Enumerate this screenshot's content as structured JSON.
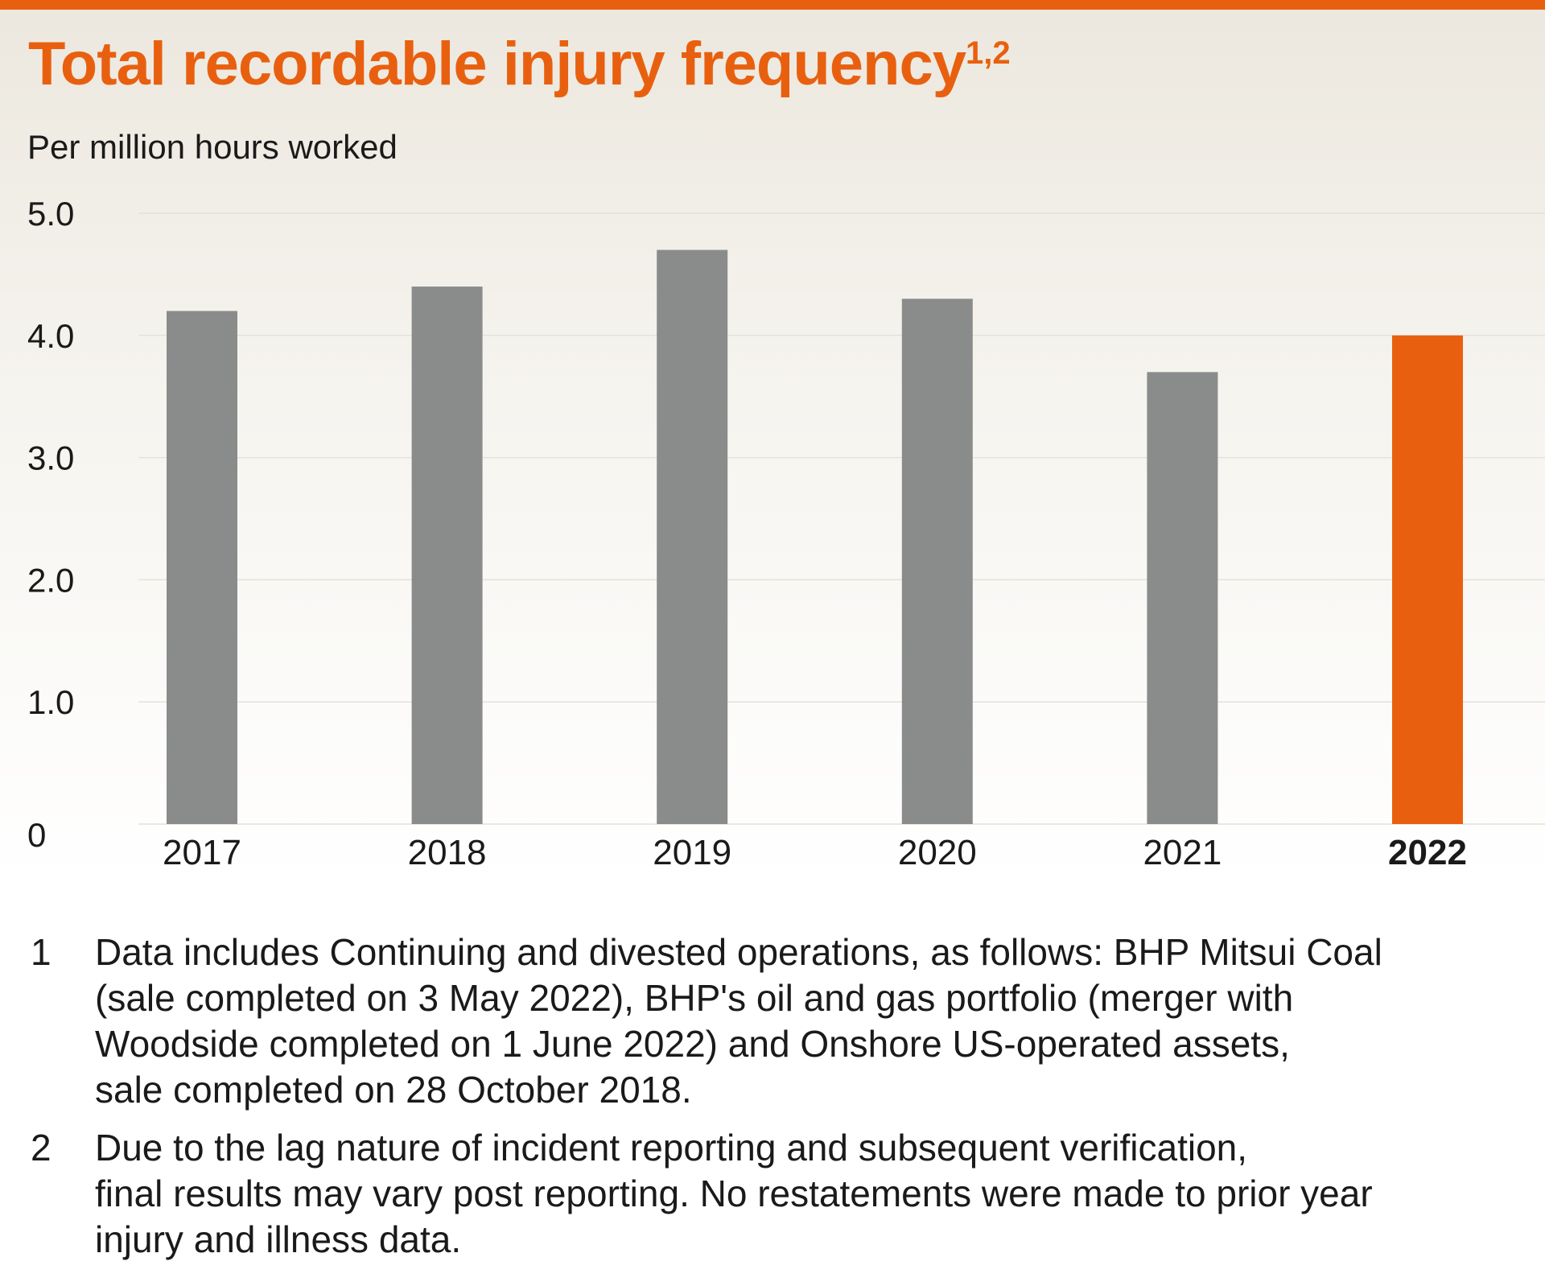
{
  "header": {
    "title": "Total recordable injury frequency",
    "title_superscript": "1,2",
    "subtitle": "Per million hours worked"
  },
  "chart_data": {
    "type": "bar",
    "title": "Total recordable injury frequency",
    "ylabel": "Per million hours worked",
    "xlabel": "",
    "categories": [
      "2017",
      "2018",
      "2019",
      "2020",
      "2021",
      "2022"
    ],
    "values": [
      4.2,
      4.4,
      4.7,
      4.3,
      3.7,
      4.0
    ],
    "highlight": "2022",
    "ylim": [
      0,
      5.0
    ],
    "yticks": [
      0,
      1.0,
      2.0,
      3.0,
      4.0,
      5.0
    ],
    "ytick_labels": [
      "0",
      "1.0",
      "2.0",
      "3.0",
      "4.0",
      "5.0"
    ],
    "grid": true,
    "colors": {
      "bar": "#8A8C8C",
      "highlight": "#E8600F",
      "grid": "#e4e1da"
    }
  },
  "footnotes": [
    {
      "number": "1",
      "lines": [
        "Data includes Continuing and divested operations, as follows: BHP Mitsui Coal",
        "(sale completed on 3 May 2022), BHP's oil and gas portfolio (merger with",
        "Woodside completed on 1 June 2022) and Onshore US-operated assets,",
        "sale completed on 28 October 2018."
      ]
    },
    {
      "number": "2",
      "lines": [
        "Due to the lag nature of incident reporting and subsequent verification,",
        "final results may vary post reporting. No restatements were made to prior year",
        "injury and illness data."
      ]
    }
  ]
}
